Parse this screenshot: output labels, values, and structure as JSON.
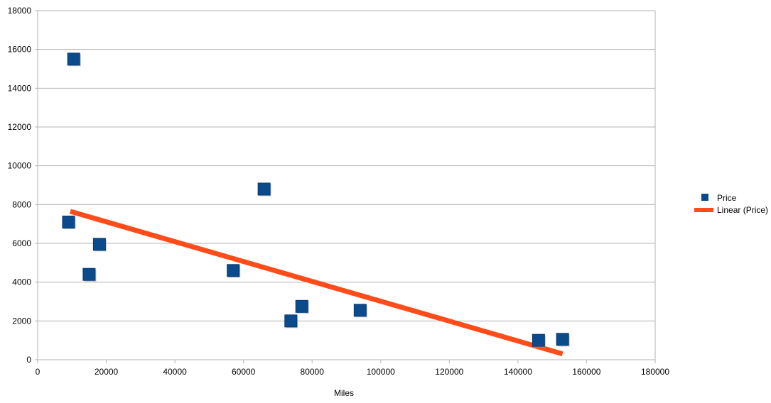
{
  "chart_data": {
    "type": "scatter",
    "title": "",
    "xlabel": "Miles",
    "ylabel": "",
    "xlim": [
      0,
      180000
    ],
    "ylim": [
      0,
      18000
    ],
    "x_ticks": [
      0,
      20000,
      40000,
      60000,
      80000,
      100000,
      120000,
      140000,
      160000,
      180000
    ],
    "y_ticks": [
      0,
      2000,
      4000,
      6000,
      8000,
      10000,
      12000,
      14000,
      16000,
      18000
    ],
    "grid": true,
    "legend_position": "right",
    "series": [
      {
        "name": "Price",
        "color": "#0b4a8b",
        "marker": "square",
        "points": [
          {
            "x": 9000,
            "y": 7100
          },
          {
            "x": 10500,
            "y": 15500
          },
          {
            "x": 15000,
            "y": 4400
          },
          {
            "x": 18000,
            "y": 5950
          },
          {
            "x": 57000,
            "y": 4600
          },
          {
            "x": 66000,
            "y": 8800
          },
          {
            "x": 73800,
            "y": 2000
          },
          {
            "x": 77000,
            "y": 2750
          },
          {
            "x": 94000,
            "y": 2550
          },
          {
            "x": 146000,
            "y": 1000
          },
          {
            "x": 153000,
            "y": 1050
          }
        ]
      }
    ],
    "trendline": {
      "name": "Linear (Price)",
      "type": "linear",
      "color": "#ff4c1a",
      "x_start": 9500,
      "y_start": 7650,
      "x_end": 153000,
      "y_end": 300
    }
  }
}
